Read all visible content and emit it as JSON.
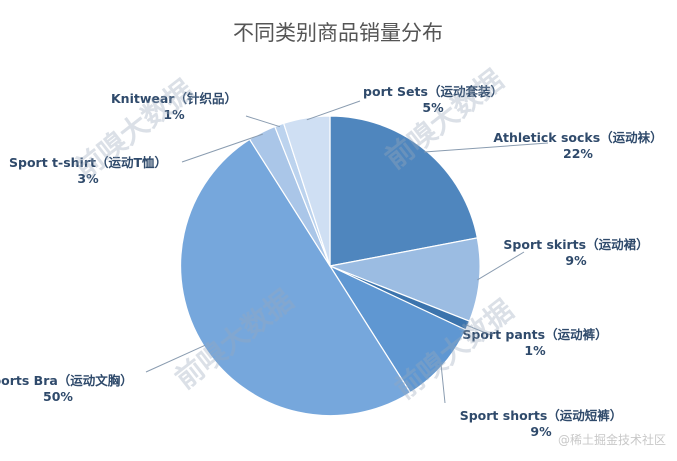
{
  "chart_data": {
    "type": "pie",
    "title": "不同类别商品销量分布",
    "slices": [
      {
        "label": "Athletick socks（运动袜）",
        "value": 22,
        "value_label": "22%",
        "color": "#4f86be"
      },
      {
        "label": "Sport skirts（运动裙）",
        "value": 9,
        "value_label": "9%",
        "color": "#9bbce2"
      },
      {
        "label": "Sport pants（运动裤）",
        "value": 1,
        "value_label": "1%",
        "color": "#3c74ad"
      },
      {
        "label": "Sport shorts（运动短裤）",
        "value": 9,
        "value_label": "9%",
        "color": "#5f97d2"
      },
      {
        "label": "Sports Bra（运动文胸）",
        "value": 50,
        "value_label": "50%",
        "color": "#76a7dc"
      },
      {
        "label": "Sport t-shirt（运动T恤）",
        "value": 3,
        "value_label": "3%",
        "color": "#aac6e8"
      },
      {
        "label": "Knitwear（针织品）",
        "value": 1,
        "value_label": "1%",
        "color": "#bcd3ee"
      },
      {
        "label": "port Sets（运动套装）",
        "value": 5,
        "value_label": "5%",
        "color": "#cfdff3"
      }
    ],
    "start_angle_deg": 0,
    "direction": "clockwise",
    "legend": "none"
  },
  "watermark": "前嗅大数据",
  "credit": "@稀土掘金技术社区"
}
